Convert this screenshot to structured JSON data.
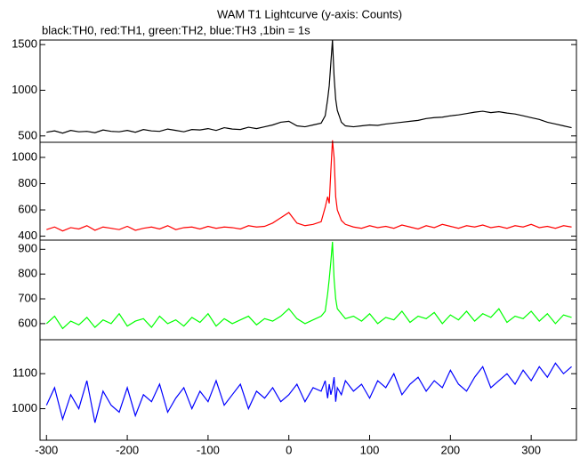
{
  "chart_data": [
    {
      "type": "line",
      "title": "WAM T1 Lightcurve (y-axis: Counts)",
      "subtitle": "black:TH0, red:TH1, green:TH2, blue:TH3 ,1bin = 1s",
      "xlim": [
        -308,
        356
      ],
      "ylim": [
        430,
        1550
      ],
      "yticks": [
        500,
        1000,
        1500
      ],
      "x": [
        -300,
        -290,
        -280,
        -270,
        -260,
        -250,
        -240,
        -230,
        -220,
        -210,
        -200,
        -190,
        -180,
        -170,
        -160,
        -150,
        -140,
        -130,
        -120,
        -110,
        -100,
        -90,
        -80,
        -70,
        -60,
        -50,
        -40,
        -30,
        -20,
        -10,
        0,
        10,
        20,
        30,
        40,
        45,
        48,
        50,
        52,
        54,
        56,
        58,
        60,
        65,
        70,
        80,
        90,
        100,
        110,
        120,
        130,
        140,
        150,
        160,
        170,
        180,
        190,
        200,
        210,
        220,
        230,
        240,
        250,
        260,
        270,
        280,
        290,
        300,
        310,
        320,
        330,
        340,
        350
      ],
      "series": [
        {
          "color": "#000000",
          "values": [
            540,
            555,
            530,
            560,
            545,
            550,
            535,
            565,
            550,
            545,
            560,
            540,
            570,
            555,
            550,
            575,
            560,
            545,
            570,
            565,
            580,
            560,
            590,
            575,
            570,
            595,
            580,
            600,
            620,
            650,
            660,
            610,
            600,
            620,
            640,
            720,
            900,
            1050,
            1300,
            1550,
            1150,
            900,
            780,
            650,
            610,
            600,
            610,
            620,
            615,
            630,
            640,
            650,
            660,
            670,
            690,
            700,
            705,
            720,
            730,
            745,
            760,
            770,
            755,
            765,
            750,
            740,
            720,
            700,
            680,
            650,
            630,
            610,
            590
          ]
        }
      ]
    },
    {
      "type": "line",
      "xlim": [
        -308,
        356
      ],
      "ylim": [
        370,
        1115
      ],
      "yticks": [
        400,
        600,
        800,
        1000
      ],
      "x": [
        -300,
        -290,
        -280,
        -270,
        -260,
        -250,
        -240,
        -230,
        -220,
        -210,
        -200,
        -190,
        -180,
        -170,
        -160,
        -150,
        -140,
        -130,
        -120,
        -110,
        -100,
        -90,
        -80,
        -70,
        -60,
        -50,
        -40,
        -30,
        -20,
        -10,
        0,
        10,
        20,
        30,
        40,
        45,
        48,
        50,
        52,
        54,
        56,
        58,
        60,
        65,
        70,
        80,
        90,
        100,
        110,
        120,
        130,
        140,
        150,
        160,
        170,
        180,
        190,
        200,
        210,
        220,
        230,
        240,
        250,
        260,
        270,
        280,
        290,
        300,
        310,
        320,
        330,
        340,
        350
      ],
      "series": [
        {
          "color": "#ff0000",
          "values": [
            450,
            470,
            440,
            465,
            455,
            480,
            445,
            470,
            460,
            450,
            475,
            445,
            460,
            470,
            455,
            480,
            450,
            465,
            470,
            455,
            475,
            460,
            470,
            465,
            455,
            480,
            470,
            475,
            500,
            540,
            580,
            500,
            480,
            490,
            510,
            620,
            700,
            650,
            900,
            1130,
            1000,
            700,
            600,
            520,
            490,
            470,
            460,
            480,
            465,
            475,
            460,
            485,
            470,
            455,
            480,
            465,
            490,
            475,
            460,
            480,
            470,
            485,
            465,
            475,
            460,
            480,
            470,
            490,
            465,
            475,
            460,
            480,
            470
          ]
        }
      ]
    },
    {
      "type": "line",
      "xlim": [
        -308,
        356
      ],
      "ylim": [
        535,
        937
      ],
      "yticks": [
        600,
        700,
        800,
        900
      ],
      "x": [
        -300,
        -290,
        -280,
        -270,
        -260,
        -250,
        -240,
        -230,
        -220,
        -210,
        -200,
        -190,
        -180,
        -170,
        -160,
        -150,
        -140,
        -130,
        -120,
        -110,
        -100,
        -90,
        -80,
        -70,
        -60,
        -50,
        -40,
        -30,
        -20,
        -10,
        0,
        10,
        20,
        30,
        40,
        45,
        48,
        50,
        52,
        54,
        56,
        58,
        60,
        65,
        70,
        80,
        90,
        100,
        110,
        120,
        130,
        140,
        150,
        160,
        170,
        180,
        190,
        200,
        210,
        220,
        230,
        240,
        250,
        260,
        270,
        280,
        290,
        300,
        310,
        320,
        330,
        340,
        350
      ],
      "series": [
        {
          "color": "#00ff00",
          "values": [
            600,
            630,
            580,
            610,
            595,
            625,
            585,
            615,
            600,
            640,
            590,
            610,
            620,
            585,
            630,
            600,
            615,
            590,
            625,
            605,
            640,
            590,
            620,
            600,
            615,
            630,
            595,
            620,
            610,
            630,
            660,
            620,
            600,
            615,
            630,
            650,
            720,
            780,
            850,
            930,
            780,
            700,
            660,
            640,
            620,
            630,
            610,
            640,
            600,
            625,
            615,
            650,
            605,
            630,
            620,
            645,
            600,
            635,
            615,
            650,
            610,
            640,
            625,
            660,
            605,
            630,
            620,
            650,
            610,
            640,
            600,
            635,
            625
          ]
        }
      ]
    },
    {
      "type": "line",
      "xlim": [
        -308,
        356
      ],
      "ylim": [
        910,
        1197
      ],
      "yticks": [
        1000,
        1100
      ],
      "xticks": [
        -300,
        -200,
        -100,
        0,
        100,
        200,
        300
      ],
      "x": [
        -300,
        -290,
        -280,
        -270,
        -260,
        -250,
        -240,
        -230,
        -220,
        -210,
        -200,
        -190,
        -180,
        -170,
        -160,
        -150,
        -140,
        -130,
        -120,
        -110,
        -100,
        -90,
        -80,
        -70,
        -60,
        -50,
        -40,
        -30,
        -20,
        -10,
        0,
        10,
        20,
        30,
        40,
        45,
        48,
        50,
        52,
        54,
        56,
        58,
        60,
        65,
        70,
        80,
        90,
        100,
        110,
        120,
        130,
        140,
        150,
        160,
        170,
        180,
        190,
        200,
        210,
        220,
        230,
        240,
        250,
        260,
        270,
        280,
        290,
        300,
        310,
        320,
        330,
        340,
        350
      ],
      "series": [
        {
          "color": "#0000ff",
          "values": [
            1010,
            1060,
            970,
            1040,
            1000,
            1080,
            960,
            1050,
            1010,
            990,
            1060,
            980,
            1040,
            1020,
            1070,
            990,
            1030,
            1060,
            1000,
            1050,
            1020,
            1080,
            1010,
            1040,
            1070,
            1000,
            1050,
            1030,
            1060,
            1020,
            1040,
            1070,
            1020,
            1060,
            1050,
            1080,
            1030,
            1070,
            1040,
            1060,
            1090,
            1020,
            1060,
            1040,
            1080,
            1050,
            1070,
            1030,
            1080,
            1060,
            1100,
            1040,
            1070,
            1090,
            1050,
            1080,
            1060,
            1110,
            1070,
            1050,
            1090,
            1120,
            1060,
            1080,
            1100,
            1070,
            1110,
            1080,
            1120,
            1090,
            1130,
            1100,
            1120
          ]
        }
      ]
    }
  ]
}
